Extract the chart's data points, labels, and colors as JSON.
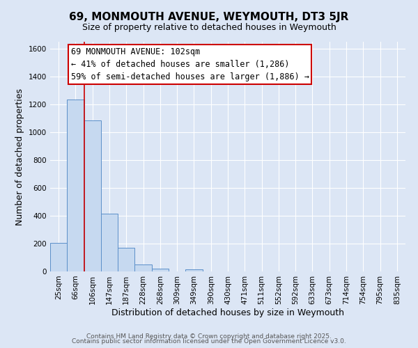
{
  "title": "69, MONMOUTH AVENUE, WEYMOUTH, DT3 5JR",
  "subtitle": "Size of property relative to detached houses in Weymouth",
  "xlabel": "Distribution of detached houses by size in Weymouth",
  "ylabel": "Number of detached properties",
  "categories": [
    "25sqm",
    "66sqm",
    "106sqm",
    "147sqm",
    "187sqm",
    "228sqm",
    "268sqm",
    "309sqm",
    "349sqm",
    "390sqm",
    "430sqm",
    "471sqm",
    "511sqm",
    "552sqm",
    "592sqm",
    "633sqm",
    "673sqm",
    "714sqm",
    "754sqm",
    "795sqm",
    "835sqm"
  ],
  "values": [
    205,
    1235,
    1085,
    415,
    170,
    50,
    22,
    0,
    15,
    0,
    0,
    0,
    0,
    0,
    0,
    0,
    0,
    0,
    0,
    0,
    0
  ],
  "bar_color": "#c6d9f0",
  "bar_edge_color": "#5b8fc9",
  "ylim": [
    0,
    1650
  ],
  "yticks": [
    0,
    200,
    400,
    600,
    800,
    1000,
    1200,
    1400,
    1600
  ],
  "vline_x": 1.5,
  "marker_label": "69 MONMOUTH AVENUE: 102sqm",
  "annotation_line1": "← 41% of detached houses are smaller (1,286)",
  "annotation_line2": "59% of semi-detached houses are larger (1,886) →",
  "annotation_box_color": "#ffffff",
  "annotation_box_edge": "#cc0000",
  "vline_color": "#cc0000",
  "background_color": "#dce6f5",
  "plot_bg_color": "#dce6f5",
  "grid_color": "#ffffff",
  "footer_line1": "Contains HM Land Registry data © Crown copyright and database right 2025.",
  "footer_line2": "Contains public sector information licensed under the Open Government Licence v3.0.",
  "title_fontsize": 11,
  "subtitle_fontsize": 9,
  "axis_label_fontsize": 9,
  "tick_fontsize": 7.5,
  "annotation_fontsize": 8.5,
  "footer_fontsize": 6.5
}
